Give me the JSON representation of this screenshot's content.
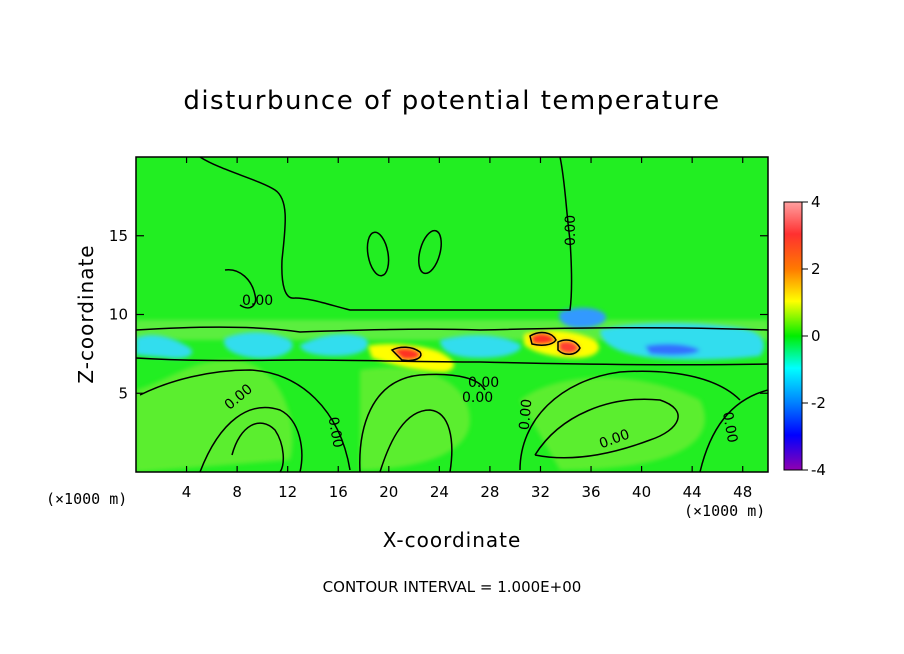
{
  "chart_data": {
    "type": "heatmap",
    "title": "disturbunce of potential temperature",
    "xlabel": "X-coordinate",
    "ylabel": "Z-coordinate",
    "x_unit": "(×1000 m)",
    "y_unit": "(×1000 m)",
    "xlim": [
      0,
      50
    ],
    "ylim": [
      0,
      20
    ],
    "x_ticks": [
      4,
      8,
      12,
      16,
      20,
      24,
      28,
      32,
      36,
      40,
      44,
      48
    ],
    "y_ticks": [
      5,
      10,
      15
    ],
    "colorbar": {
      "range": [
        -4,
        4
      ],
      "ticks": [
        4,
        2,
        0,
        -2,
        -4
      ],
      "colors": [
        "#ff9090",
        "#ff2020",
        "#ff8000",
        "#ffff00",
        "#00ff00",
        "#00ffff",
        "#0070ff",
        "#0000ff",
        "#9000c0"
      ]
    },
    "contour_labels": [
      "0.00",
      "0.00",
      "0.00",
      "0.00",
      "0.00",
      "0.00",
      "0.00",
      "0.00",
      "0.00"
    ],
    "contour_interval_text": "CONTOUR INTERVAL = 1.000E+00",
    "grid": false
  }
}
